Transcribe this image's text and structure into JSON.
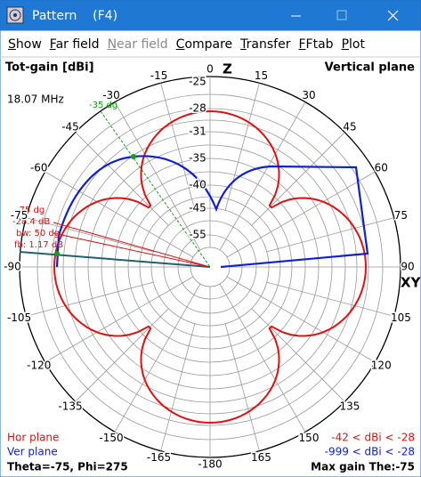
{
  "window": {
    "title": "Pattern    (F4)",
    "menu": [
      "Show",
      "Far field",
      "Near field",
      "Compare",
      "Transfer",
      "FFtab",
      "Plot"
    ]
  },
  "plot": {
    "heading_left": "Tot-gain [dBi]",
    "heading_right": "Vertical plane",
    "frequency": "18.07 MHz",
    "axis_top": "Z",
    "axis_right": "XY",
    "angles": [
      0,
      15,
      30,
      45,
      60,
      75,
      90,
      105,
      120,
      135,
      150,
      165,
      -180,
      -165,
      -150,
      -135,
      -120,
      -105,
      -90,
      -75,
      -60,
      -45,
      -30,
      -15
    ],
    "radial_labels": [
      -25,
      -28,
      -31,
      -35,
      -40,
      -45,
      -55
    ],
    "marker": "-35 dg",
    "info": [
      "-75 dg",
      "-28.4 dB",
      "bw: 50 dg",
      "fb: 1.17 dB"
    ]
  },
  "footer": {
    "hor_plane": "Hor plane",
    "ver_plane": "Ver plane",
    "hor_range": "-42 < dBi < -28",
    "ver_range": "-999 < dBi < -28",
    "cursor": "Theta=-75, Phi=275",
    "max_gain": "Max gain The:-75"
  }
}
